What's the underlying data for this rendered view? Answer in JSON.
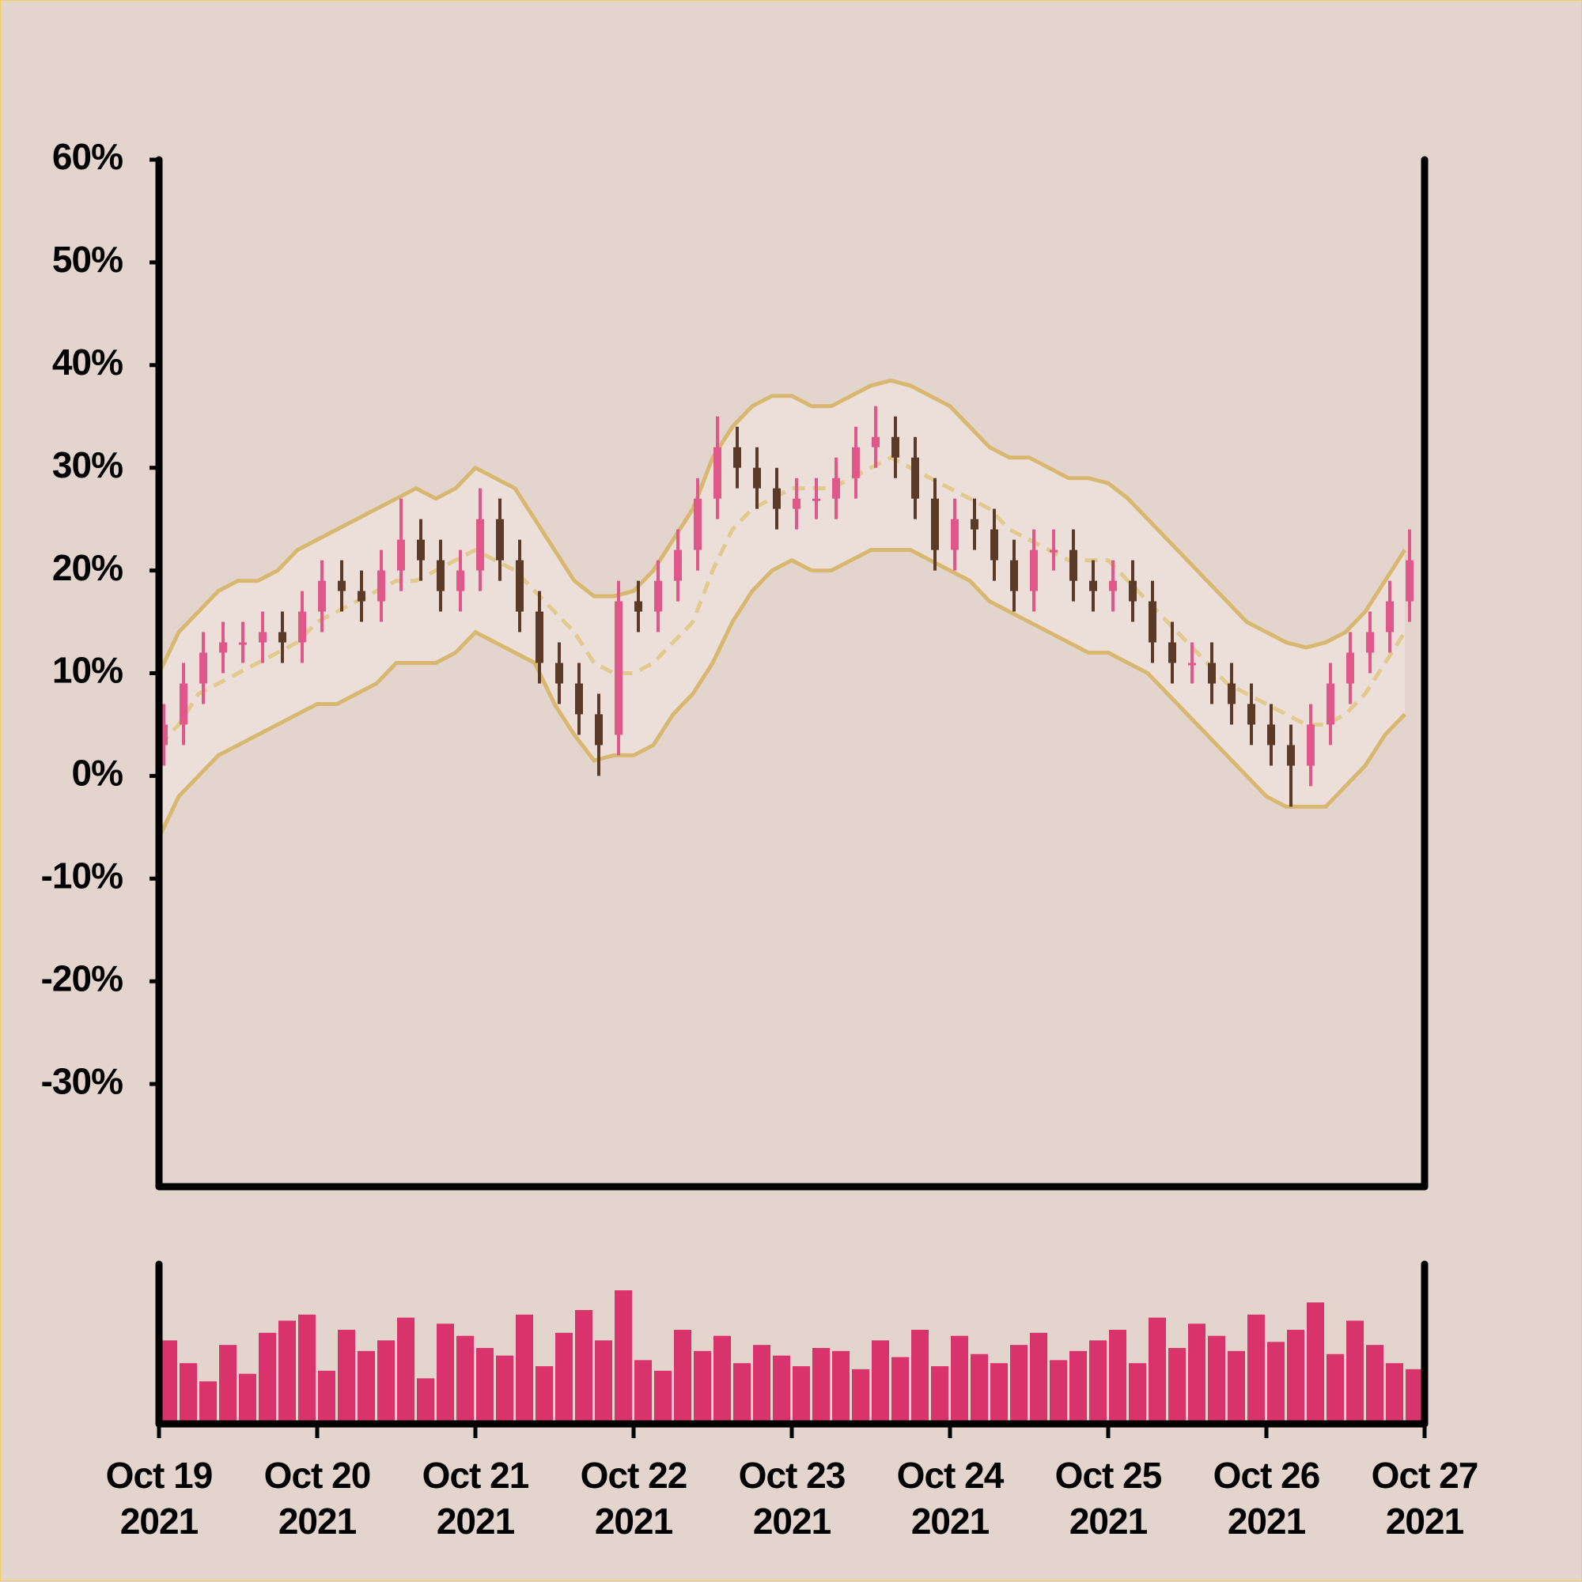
{
  "chart_data": {
    "type": "ohlc",
    "x": [
      "2021-10-19T00:00",
      "2021-10-19T03:00",
      "2021-10-19T06:00",
      "2021-10-19T09:00",
      "2021-10-19T12:00",
      "2021-10-19T15:00",
      "2021-10-19T18:00",
      "2021-10-19T21:00",
      "2021-10-20T00:00",
      "2021-10-20T03:00",
      "2021-10-20T06:00",
      "2021-10-20T09:00",
      "2021-10-20T12:00",
      "2021-10-20T15:00",
      "2021-10-20T18:00",
      "2021-10-20T21:00",
      "2021-10-21T00:00",
      "2021-10-21T03:00",
      "2021-10-21T06:00",
      "2021-10-21T09:00",
      "2021-10-21T12:00",
      "2021-10-21T15:00",
      "2021-10-21T18:00",
      "2021-10-21T21:00",
      "2021-10-22T00:00",
      "2021-10-22T03:00",
      "2021-10-22T06:00",
      "2021-10-22T09:00",
      "2021-10-22T12:00",
      "2021-10-22T15:00",
      "2021-10-22T18:00",
      "2021-10-22T21:00",
      "2021-10-23T00:00",
      "2021-10-23T03:00",
      "2021-10-23T06:00",
      "2021-10-23T09:00",
      "2021-10-23T12:00",
      "2021-10-23T15:00",
      "2021-10-23T18:00",
      "2021-10-23T21:00",
      "2021-10-24T00:00",
      "2021-10-24T03:00",
      "2021-10-24T06:00",
      "2021-10-24T09:00",
      "2021-10-24T12:00",
      "2021-10-24T15:00",
      "2021-10-24T18:00",
      "2021-10-24T21:00",
      "2021-10-25T00:00",
      "2021-10-25T03:00",
      "2021-10-25T06:00",
      "2021-10-25T09:00",
      "2021-10-25T12:00",
      "2021-10-25T15:00",
      "2021-10-25T18:00",
      "2021-10-25T21:00",
      "2021-10-26T00:00",
      "2021-10-26T03:00",
      "2021-10-26T06:00",
      "2021-10-26T09:00",
      "2021-10-26T12:00",
      "2021-10-26T15:00",
      "2021-10-26T18:00",
      "2021-10-26T21:00"
    ],
    "open": [
      3,
      5,
      9,
      12,
      13,
      13,
      14,
      13,
      16,
      19,
      18,
      17,
      20,
      23,
      21,
      18,
      20,
      25,
      21,
      16,
      11,
      9,
      6,
      4,
      17,
      16,
      19,
      22,
      27,
      32,
      30,
      28,
      26,
      27,
      27,
      29,
      32,
      33,
      31,
      27,
      22,
      25,
      24,
      21,
      18,
      22,
      22,
      19,
      18,
      19,
      17,
      13,
      11,
      11,
      9,
      7,
      5,
      3,
      1,
      5,
      9,
      12,
      14,
      17
    ],
    "high": [
      7,
      11,
      14,
      15,
      15,
      16,
      16,
      18,
      21,
      21,
      20,
      22,
      27,
      25,
      23,
      22,
      28,
      27,
      23,
      18,
      13,
      11,
      8,
      19,
      19,
      21,
      24,
      29,
      35,
      34,
      32,
      30,
      29,
      29,
      31,
      34,
      36,
      35,
      33,
      29,
      27,
      27,
      26,
      23,
      24,
      24,
      24,
      21,
      21,
      21,
      19,
      15,
      13,
      13,
      11,
      9,
      7,
      5,
      7,
      11,
      14,
      16,
      19,
      24
    ],
    "low": [
      1,
      3,
      7,
      10,
      11,
      11,
      11,
      11,
      14,
      16,
      15,
      15,
      18,
      19,
      16,
      16,
      18,
      19,
      14,
      9,
      7,
      4,
      0,
      2,
      14,
      14,
      17,
      20,
      25,
      28,
      26,
      24,
      24,
      25,
      25,
      27,
      30,
      29,
      25,
      20,
      20,
      22,
      19,
      16,
      16,
      20,
      17,
      16,
      16,
      15,
      11,
      9,
      9,
      7,
      5,
      3,
      1,
      -3,
      -1,
      3,
      7,
      10,
      12,
      15
    ],
    "close": [
      5,
      9,
      12,
      13,
      13,
      14,
      13,
      16,
      19,
      18,
      17,
      20,
      23,
      21,
      18,
      20,
      25,
      21,
      16,
      11,
      9,
      6,
      3,
      17,
      16,
      19,
      22,
      27,
      32,
      30,
      28,
      26,
      27,
      27,
      29,
      32,
      33,
      31,
      27,
      22,
      25,
      24,
      21,
      18,
      22,
      22,
      19,
      18,
      19,
      17,
      13,
      11,
      11,
      9,
      7,
      5,
      3,
      1,
      5,
      9,
      12,
      14,
      17,
      21
    ],
    "up_color": "#e0588a",
    "down_color": "#5c3a28",
    "bands": [
      {
        "values": [
          10,
          14,
          16,
          18,
          19,
          19,
          20,
          22,
          23,
          24,
          25,
          26,
          27,
          28,
          27,
          28,
          30,
          29,
          28,
          25,
          22,
          19,
          17.5,
          17.5,
          18,
          20,
          23,
          26,
          31,
          34,
          36,
          37,
          37,
          36,
          36,
          37,
          38,
          38.5,
          38,
          37,
          36,
          34,
          32,
          31,
          31,
          30,
          29,
          29,
          28.5,
          27,
          25,
          23,
          21,
          19,
          17,
          15,
          14,
          13,
          12.5,
          13,
          14,
          16,
          19,
          22
        ],
        "color": "#d8b870",
        "dashed": false
      },
      {
        "values": [
          3,
          5,
          8,
          9,
          10,
          11,
          12,
          13,
          15,
          16,
          17,
          18,
          19,
          19,
          20,
          21,
          22,
          21,
          20,
          18,
          16,
          14,
          11,
          10,
          10,
          11,
          13,
          15,
          20,
          24,
          26,
          27,
          28,
          28,
          28,
          29,
          30,
          31,
          30,
          29,
          28,
          27,
          26,
          24,
          23,
          22,
          21,
          21,
          21,
          19,
          17,
          15,
          13,
          11,
          9,
          8,
          7,
          6,
          5,
          5,
          6,
          8,
          11,
          14
        ],
        "color": "#e2c98e",
        "dashed": true
      },
      {
        "values": [
          -6,
          -2,
          0,
          2,
          3,
          4,
          5,
          6,
          7,
          7,
          8,
          9,
          11,
          11,
          11,
          12,
          14,
          13,
          12,
          11,
          7,
          4,
          1.5,
          2,
          2,
          3,
          6,
          8,
          11,
          15,
          18,
          20,
          21,
          20,
          20,
          21,
          22,
          22,
          22,
          21,
          20,
          19,
          17,
          16,
          15,
          14,
          13,
          12,
          12,
          11,
          10,
          8,
          6,
          4,
          2,
          0,
          -2,
          -3,
          -3,
          -3,
          -1,
          1,
          4,
          6
        ],
        "color": "#d8b870",
        "dashed": false
      }
    ],
    "band_fill": "#ecdfda",
    "volume": [
      55,
      40,
      28,
      52,
      33,
      60,
      68,
      72,
      35,
      62,
      48,
      55,
      70,
      30,
      66,
      58,
      50,
      45,
      72,
      38,
      60,
      75,
      55,
      88,
      42,
      35,
      62,
      48,
      58,
      40,
      52,
      45,
      38,
      50,
      48,
      36,
      55,
      44,
      62,
      38,
      58,
      46,
      40,
      52,
      60,
      42,
      48,
      55,
      62,
      40,
      70,
      50,
      66,
      58,
      48,
      72,
      54,
      62,
      80,
      46,
      68,
      52,
      40,
      36
    ],
    "volume_color": "#d8336b",
    "volume_ylim": [
      0,
      100
    ],
    "xlim": [
      "2021-10-19T00:00",
      "2021-10-27T00:00"
    ],
    "xticks": [
      {
        "value": "2021-10-19T00:00",
        "label": "Oct 19 2021"
      },
      {
        "value": "2021-10-20T00:00",
        "label": "Oct 20 2021"
      },
      {
        "value": "2021-10-21T00:00",
        "label": "Oct 21 2021"
      },
      {
        "value": "2021-10-22T00:00",
        "label": "Oct 22 2021"
      },
      {
        "value": "2021-10-23T00:00",
        "label": "Oct 23 2021"
      },
      {
        "value": "2021-10-24T00:00",
        "label": "Oct 24 2021"
      },
      {
        "value": "2021-10-25T00:00",
        "label": "Oct 25 2021"
      },
      {
        "value": "2021-10-26T00:00",
        "label": "Oct 26 2021"
      },
      {
        "value": "2021-10-27T00:00",
        "label": "Oct 27 2021"
      }
    ],
    "ylim": [
      -40,
      60
    ],
    "yticks": [
      {
        "value": -30,
        "label": "-30%"
      },
      {
        "value": -20,
        "label": "-20%"
      },
      {
        "value": -10,
        "label": "-10%"
      },
      {
        "value": 0,
        "label": "0%"
      },
      {
        "value": 10,
        "label": "10%"
      },
      {
        "value": 20,
        "label": "20%"
      },
      {
        "value": 30,
        "label": "30%"
      },
      {
        "value": 40,
        "label": "40%"
      },
      {
        "value": 50,
        "label": "50%"
      },
      {
        "value": 60,
        "label": "60%"
      }
    ]
  }
}
